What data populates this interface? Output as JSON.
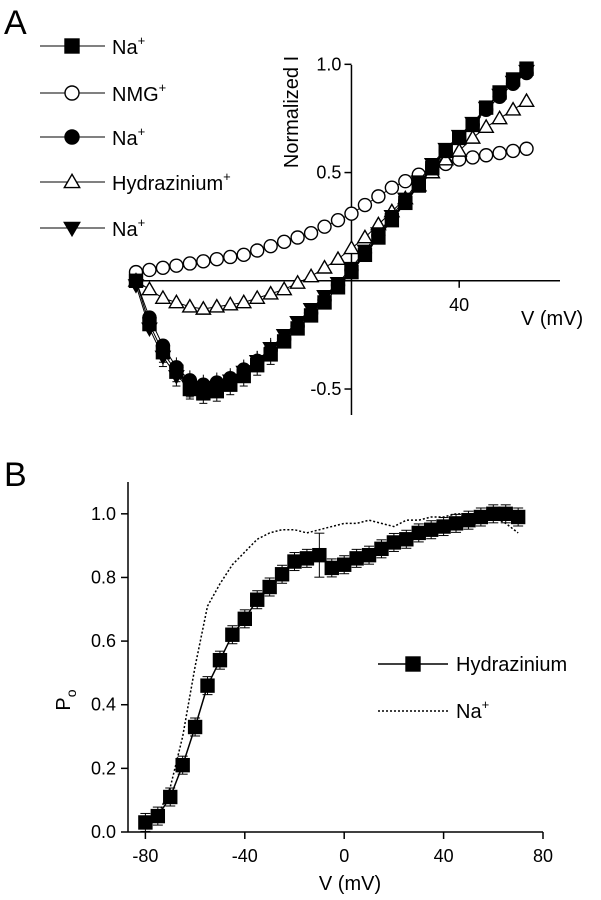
{
  "chart_data": [
    {
      "panel_label": "A",
      "type": "scatter",
      "xlabel": "V (mV)",
      "ylabel": "Normalized I",
      "xlim": [
        -80,
        70
      ],
      "ylim": [
        -0.62,
        1.02
      ],
      "x_ticks": [
        40
      ],
      "x_tick_labels": [
        "40"
      ],
      "y_ticks": [
        1.0,
        0.5,
        -0.5
      ],
      "y_tick_labels": [
        "1.0",
        "0.5",
        "-0.5"
      ],
      "legend_position": "top-left",
      "series": [
        {
          "name": "Na",
          "name_superscript": "+",
          "marker": "square-filled",
          "x": [
            -80,
            -75,
            -70,
            -65,
            -60,
            -55,
            -50,
            -45,
            -40,
            -35,
            -30,
            -25,
            -20,
            -15,
            -10,
            -5,
            0,
            5,
            10,
            15,
            20,
            25,
            30,
            35,
            40,
            45,
            50,
            55,
            60,
            65
          ],
          "y": [
            0.0,
            -0.2,
            -0.33,
            -0.42,
            -0.5,
            -0.52,
            -0.51,
            -0.48,
            -0.44,
            -0.39,
            -0.34,
            -0.28,
            -0.22,
            -0.16,
            -0.1,
            -0.03,
            0.04,
            0.12,
            0.2,
            0.28,
            0.36,
            0.44,
            0.52,
            0.6,
            0.66,
            0.72,
            0.8,
            0.87,
            0.93,
            0.98
          ]
        },
        {
          "name": "NMG",
          "name_superscript": "+",
          "marker": "circle-open",
          "x": [
            -80,
            -75,
            -70,
            -65,
            -60,
            -55,
            -50,
            -45,
            -40,
            -35,
            -30,
            -25,
            -20,
            -15,
            -10,
            -5,
            0,
            5,
            10,
            15,
            20,
            25,
            30,
            35,
            40,
            45,
            50,
            55,
            60,
            65
          ],
          "y": [
            0.04,
            0.05,
            0.06,
            0.07,
            0.08,
            0.09,
            0.1,
            0.11,
            0.12,
            0.14,
            0.16,
            0.18,
            0.2,
            0.22,
            0.25,
            0.28,
            0.31,
            0.35,
            0.39,
            0.43,
            0.46,
            0.49,
            0.52,
            0.54,
            0.56,
            0.57,
            0.58,
            0.59,
            0.6,
            0.61
          ]
        },
        {
          "name": "Na",
          "name_superscript": "+",
          "marker": "circle-filled",
          "x": [
            -80,
            -75,
            -70,
            -65,
            -60,
            -55,
            -50,
            -45,
            -40,
            -35,
            -30,
            -25,
            -20,
            -15,
            -10,
            -5,
            0,
            5,
            10,
            15,
            20,
            25,
            30,
            35,
            40,
            45,
            50,
            55,
            60,
            65
          ],
          "y": [
            0.0,
            -0.17,
            -0.3,
            -0.4,
            -0.46,
            -0.48,
            -0.47,
            -0.45,
            -0.41,
            -0.37,
            -0.32,
            -0.27,
            -0.21,
            -0.15,
            -0.09,
            -0.02,
            0.05,
            0.13,
            0.21,
            0.29,
            0.37,
            0.45,
            0.53,
            0.6,
            0.66,
            0.72,
            0.79,
            0.85,
            0.91,
            0.96
          ]
        },
        {
          "name": "Hydrazinium",
          "name_superscript": "+",
          "marker": "triangle-up-open",
          "x": [
            -80,
            -75,
            -70,
            -65,
            -60,
            -55,
            -50,
            -45,
            -40,
            -35,
            -30,
            -25,
            -20,
            -15,
            -10,
            -5,
            0,
            5,
            10,
            15,
            20,
            25,
            30,
            35,
            40,
            45,
            50,
            55,
            60,
            65
          ],
          "y": [
            0.0,
            -0.04,
            -0.08,
            -0.1,
            -0.12,
            -0.13,
            -0.12,
            -0.11,
            -0.1,
            -0.08,
            -0.06,
            -0.04,
            -0.01,
            0.02,
            0.06,
            0.1,
            0.15,
            0.2,
            0.26,
            0.32,
            0.38,
            0.44,
            0.5,
            0.56,
            0.6,
            0.66,
            0.71,
            0.75,
            0.79,
            0.83
          ]
        },
        {
          "name": "Na",
          "name_superscript": "+",
          "marker": "triangle-down-filled",
          "x": [
            -80,
            -75,
            -70,
            -65,
            -60,
            -55,
            -50,
            -45,
            -40,
            -35,
            -30,
            -25,
            -20,
            -15,
            -10,
            -5,
            0,
            5,
            10,
            15,
            20,
            25,
            30,
            35,
            40,
            45,
            50,
            55,
            60,
            65
          ],
          "y": [
            -0.02,
            -0.22,
            -0.35,
            -0.44,
            -0.49,
            -0.5,
            -0.49,
            -0.46,
            -0.42,
            -0.37,
            -0.31,
            -0.25,
            -0.19,
            -0.13,
            -0.07,
            -0.01,
            0.06,
            0.14,
            0.22,
            0.3,
            0.38,
            0.46,
            0.54,
            0.61,
            0.67,
            0.73,
            0.8,
            0.86,
            0.92,
            0.97
          ]
        }
      ]
    },
    {
      "panel_label": "B",
      "type": "line",
      "xlabel": "V (mV)",
      "ylabel": "P",
      "ylabel_subscript": "o",
      "xlim": [
        -87,
        80
      ],
      "ylim": [
        0,
        1.1
      ],
      "x_ticks": [
        -80,
        -40,
        0,
        40,
        80
      ],
      "x_tick_labels": [
        "-80",
        "-40",
        "0",
        "40",
        "80"
      ],
      "y_ticks": [
        0.0,
        0.2,
        0.4,
        0.6,
        0.8,
        1.0
      ],
      "y_tick_labels": [
        "0.0",
        "0.2",
        "0.4",
        "0.6",
        "0.8",
        "1.0"
      ],
      "legend_position": "right",
      "series": [
        {
          "name": "Hydrazinium",
          "marker": "square-filled",
          "style": "solid",
          "x": [
            -80,
            -75,
            -70,
            -65,
            -60,
            -55,
            -50,
            -45,
            -40,
            -35,
            -30,
            -25,
            -20,
            -15,
            -10,
            -5,
            0,
            5,
            10,
            15,
            20,
            25,
            30,
            35,
            40,
            45,
            50,
            55,
            60,
            65,
            70
          ],
          "y": [
            0.03,
            0.05,
            0.11,
            0.21,
            0.33,
            0.46,
            0.54,
            0.62,
            0.67,
            0.73,
            0.77,
            0.81,
            0.85,
            0.86,
            0.87,
            0.83,
            0.84,
            0.86,
            0.87,
            0.89,
            0.91,
            0.92,
            0.94,
            0.95,
            0.96,
            0.97,
            0.98,
            0.99,
            1.0,
            1.0,
            0.99
          ]
        },
        {
          "name": "Na",
          "name_superscript": "+",
          "style": "dotted",
          "x": [
            -80,
            -75,
            -70,
            -65,
            -60,
            -55,
            -50,
            -45,
            -40,
            -35,
            -30,
            -25,
            -20,
            -15,
            -10,
            -5,
            0,
            5,
            10,
            15,
            20,
            25,
            30,
            35,
            40,
            45,
            50,
            55,
            60,
            65,
            70
          ],
          "y": [
            0.02,
            0.05,
            0.14,
            0.3,
            0.52,
            0.71,
            0.78,
            0.84,
            0.88,
            0.92,
            0.94,
            0.95,
            0.95,
            0.94,
            0.95,
            0.96,
            0.97,
            0.97,
            0.98,
            0.97,
            0.96,
            0.98,
            0.98,
            0.99,
            0.99,
            1.0,
            1.0,
            1.0,
            0.99,
            0.97,
            0.94
          ]
        }
      ]
    }
  ]
}
